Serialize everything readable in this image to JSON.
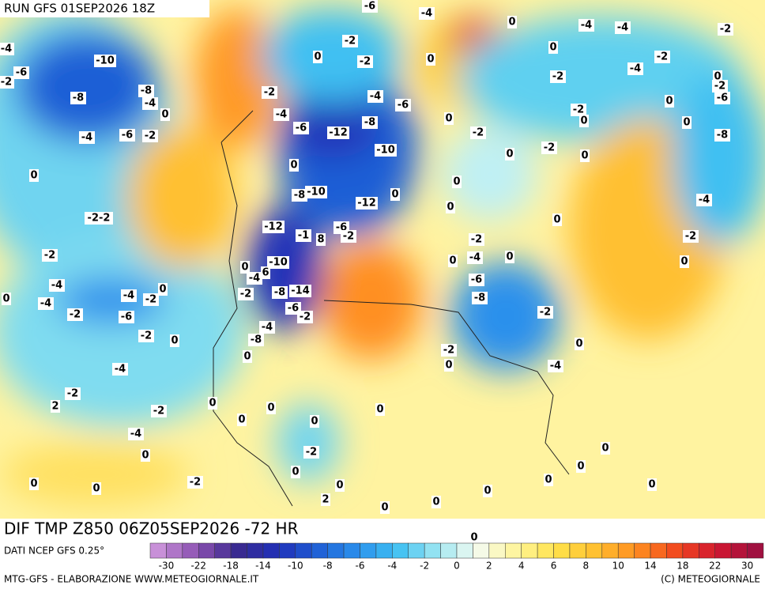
{
  "header": {
    "run": "RUN GFS 01SEP2026 18Z"
  },
  "map": {
    "title": "DIF TMP Z850 06Z05SEP2026 -72 HR",
    "contour_labels": [
      "-6",
      "-4",
      "0",
      "-4",
      "-4",
      "-2",
      "-4",
      "-2",
      "-2",
      "0",
      "-10",
      "0",
      "0",
      "-2",
      "-4",
      "-6",
      "-2",
      "-2",
      "0",
      "-2",
      "-8",
      "-2",
      "-8",
      "-4",
      "-6",
      "-6",
      "-4",
      "0",
      "-2",
      "0",
      "-4",
      "-8",
      "0",
      "0",
      "0",
      "-6",
      "-12",
      "-2",
      "-4",
      "-6",
      "-2",
      "-8",
      "-10",
      "-2",
      "0",
      "0",
      "0",
      "0",
      "0",
      "-10",
      "-8",
      "0",
      "-12",
      "0",
      "-4",
      "-2-2",
      "0",
      "-12",
      "-6",
      "-2",
      "-1",
      "8",
      "-2",
      "-2",
      "-2",
      "-4",
      "0",
      "0",
      "0",
      "-10",
      "0",
      "6",
      "-4",
      "-6",
      "-4",
      "0",
      "-14",
      "-8",
      "-2",
      "-4",
      "-2",
      "-8",
      "0",
      "-4",
      "-6",
      "-2",
      "-2",
      "-6",
      "-2",
      "-4",
      "-2",
      "0",
      "-8",
      "0",
      "-2",
      "0",
      "0",
      "-4",
      "-4",
      "-2",
      "2",
      "0",
      "-2",
      "0",
      "0",
      "0",
      "0",
      "-4",
      "0",
      "-2",
      "0",
      "0",
      "0",
      "-2",
      "0",
      "0",
      "0",
      "0",
      "0",
      "0",
      "0",
      "2",
      "0",
      "0"
    ]
  },
  "legend": {
    "source": "DATI NCEP GFS 0.25°",
    "ticks": [
      "-30",
      "-22",
      "-18",
      "-14",
      "-10",
      "-8",
      "-6",
      "-4",
      "-2",
      "0",
      "2",
      "4",
      "6",
      "8",
      "10",
      "14",
      "18",
      "22",
      "30"
    ],
    "colors": [
      "#c890d8",
      "#8a50b0",
      "#3a2a90",
      "#2030b8",
      "#1f5fd6",
      "#2a90ec",
      "#3fc0f2",
      "#9ce6f2",
      "#f4fbf0",
      "#fff59a",
      "#ffe24a",
      "#ffbf30",
      "#ff8f20",
      "#f24a1e",
      "#d21830",
      "#a01040"
    ]
  },
  "footer": {
    "left": "MTG-GFS - ELABORAZIONE WWW.METEOGIORNALE.IT",
    "right": "(C) METEOGIORNALE"
  }
}
